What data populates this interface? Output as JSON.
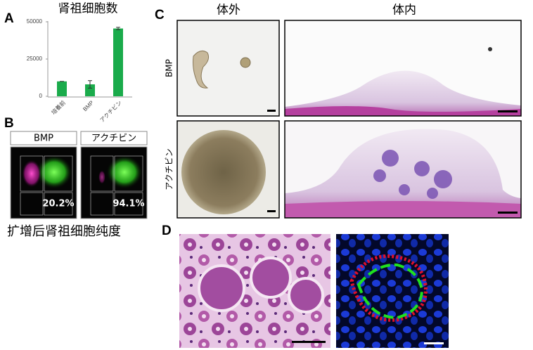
{
  "chart_data": {
    "type": "bar",
    "panel_label": "A",
    "title": "肾祖细胞数",
    "categories": [
      "培養前",
      "BMP",
      "アクチビン"
    ],
    "values": [
      10000,
      8000,
      45500
    ],
    "errors": [
      0,
      2500,
      800
    ],
    "color": "#1aab4b",
    "ylim": [
      0,
      50000
    ],
    "yticks": [
      0,
      25000,
      50000
    ]
  },
  "panel_b": {
    "label": "B",
    "flow": [
      {
        "title": "BMP",
        "percent": "20.2%"
      },
      {
        "title": "アクチビン",
        "percent": "94.1%"
      }
    ],
    "caption": "扩增后肾祖细胞纯度"
  },
  "panel_c": {
    "label": "C",
    "columns": [
      "体外",
      "体内"
    ],
    "rows": [
      "BMP",
      "アクチビン"
    ]
  },
  "panel_d": {
    "label": "D"
  }
}
